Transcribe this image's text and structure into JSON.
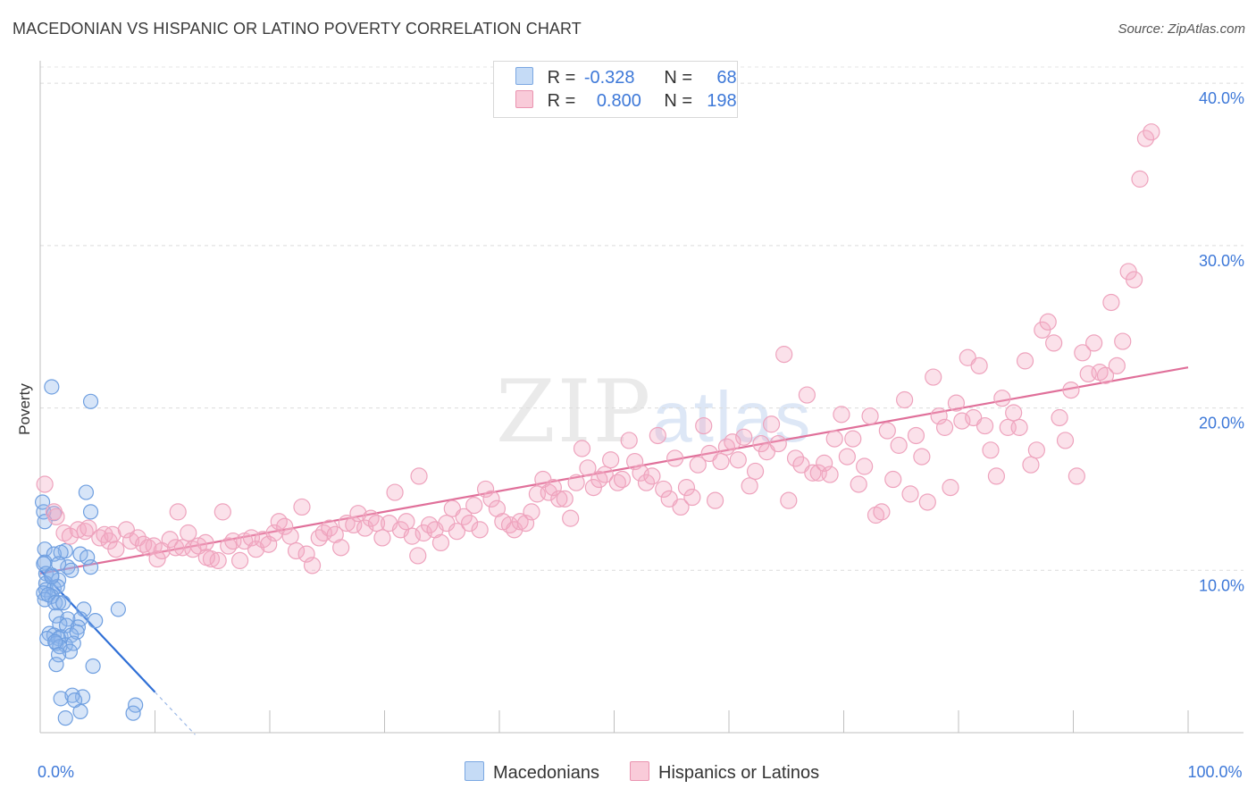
{
  "title": "MACEDONIAN VS HISPANIC OR LATINO POVERTY CORRELATION CHART",
  "source": "Source: ZipAtlas.com",
  "watermark": {
    "zip": "ZIP",
    "atlas": "atlas"
  },
  "legend": {
    "r_label": "R =",
    "n_label": "N =",
    "macedonian": {
      "r": "-0.328",
      "n": "68",
      "color": "#a8c8f0"
    },
    "hispanic": {
      "r": "0.800",
      "n": "198",
      "color": "#f4b8cb"
    }
  },
  "bottom_legend": {
    "macedonians": "Macedonians",
    "hispanics": "Hispanics or Latinos"
  },
  "chart_data": {
    "type": "scatter",
    "title": "MACEDONIAN VS HISPANIC OR LATINO POVERTY CORRELATION CHART",
    "xlabel": "",
    "ylabel": "Poverty",
    "xlim": [
      0,
      100
    ],
    "ylim": [
      0,
      41
    ],
    "x_tick_labels": [
      {
        "value": 0,
        "label": "0.0%"
      },
      {
        "value": 100,
        "label": "100.0%"
      }
    ],
    "y_tick_labels": [
      {
        "value": 10,
        "label": "10.0%"
      },
      {
        "value": 20,
        "label": "20.0%"
      },
      {
        "value": 30,
        "label": "30.0%"
      },
      {
        "value": 40,
        "label": "40.0%"
      }
    ],
    "series": [
      {
        "name": "Macedonians",
        "color": "#6fa3e6",
        "trend": {
          "x0": 0,
          "y0": 10.0,
          "x1": 10,
          "y1": 2.5,
          "dash_to_x": 13.5
        },
        "points": [
          [
            1.0,
            21.3
          ],
          [
            4.4,
            20.4
          ],
          [
            4.0,
            14.8
          ],
          [
            4.4,
            13.6
          ],
          [
            0.3,
            13.6
          ],
          [
            1.2,
            13.5
          ],
          [
            0.4,
            13.0
          ],
          [
            0.4,
            11.3
          ],
          [
            2.2,
            11.2
          ],
          [
            3.5,
            11.0
          ],
          [
            4.1,
            10.8
          ],
          [
            1.2,
            11.0
          ],
          [
            1.8,
            11.1
          ],
          [
            0.4,
            10.5
          ],
          [
            2.4,
            10.2
          ],
          [
            0.3,
            10.4
          ],
          [
            1.6,
            10.4
          ],
          [
            2.7,
            10.0
          ],
          [
            4.4,
            10.2
          ],
          [
            0.5,
            9.8
          ],
          [
            1.0,
            9.7
          ],
          [
            0.5,
            9.2
          ],
          [
            1.6,
            9.4
          ],
          [
            0.5,
            8.8
          ],
          [
            1.2,
            8.9
          ],
          [
            1.5,
            9.0
          ],
          [
            0.3,
            8.6
          ],
          [
            1.0,
            8.4
          ],
          [
            0.4,
            8.2
          ],
          [
            0.7,
            8.5
          ],
          [
            1.3,
            8.0
          ],
          [
            1.6,
            8.0
          ],
          [
            2.0,
            8.0
          ],
          [
            3.8,
            7.6
          ],
          [
            6.8,
            7.6
          ],
          [
            1.4,
            7.2
          ],
          [
            2.4,
            7.0
          ],
          [
            3.5,
            7.0
          ],
          [
            4.8,
            6.9
          ],
          [
            1.7,
            6.7
          ],
          [
            2.3,
            6.6
          ],
          [
            3.3,
            6.5
          ],
          [
            0.8,
            6.1
          ],
          [
            1.2,
            6.0
          ],
          [
            1.8,
            5.9
          ],
          [
            0.6,
            5.8
          ],
          [
            1.6,
            5.8
          ],
          [
            2.7,
            6.0
          ],
          [
            3.2,
            6.2
          ],
          [
            1.4,
            5.5
          ],
          [
            2.2,
            5.4
          ],
          [
            1.7,
            5.3
          ],
          [
            2.9,
            5.5
          ],
          [
            1.3,
            5.6
          ],
          [
            2.6,
            5.0
          ],
          [
            1.6,
            4.8
          ],
          [
            1.4,
            4.2
          ],
          [
            4.6,
            4.1
          ],
          [
            1.8,
            2.1
          ],
          [
            3.7,
            2.2
          ],
          [
            2.8,
            2.3
          ],
          [
            8.3,
            1.7
          ],
          [
            3.5,
            1.3
          ],
          [
            8.1,
            1.2
          ],
          [
            2.2,
            0.9
          ],
          [
            3.0,
            2.0
          ],
          [
            0.2,
            14.2
          ],
          [
            1.0,
            9.6
          ]
        ]
      },
      {
        "name": "Hispanics or Latinos",
        "color": "#f09bb5",
        "trend": {
          "x0": 0,
          "y0": 9.8,
          "x1": 100,
          "y1": 22.5
        },
        "points": [
          [
            0.4,
            15.3
          ],
          [
            1.2,
            13.6
          ],
          [
            1.4,
            13.3
          ],
          [
            2.1,
            12.3
          ],
          [
            2.6,
            12.1
          ],
          [
            3.3,
            12.5
          ],
          [
            3.9,
            12.4
          ],
          [
            4.2,
            12.6
          ],
          [
            5.2,
            12.0
          ],
          [
            5.6,
            12.2
          ],
          [
            6.0,
            11.8
          ],
          [
            6.3,
            12.2
          ],
          [
            6.6,
            11.3
          ],
          [
            7.5,
            12.5
          ],
          [
            7.9,
            11.8
          ],
          [
            8.5,
            12.0
          ],
          [
            9.0,
            11.6
          ],
          [
            9.4,
            11.4
          ],
          [
            9.9,
            11.5
          ],
          [
            10.2,
            10.7
          ],
          [
            10.6,
            11.2
          ],
          [
            11.3,
            11.9
          ],
          [
            11.8,
            11.4
          ],
          [
            12.4,
            11.4
          ],
          [
            12.9,
            12.3
          ],
          [
            13.3,
            11.3
          ],
          [
            13.8,
            11.5
          ],
          [
            14.4,
            11.7
          ],
          [
            14.9,
            10.7
          ],
          [
            15.5,
            10.6
          ],
          [
            15.9,
            13.6
          ],
          [
            16.4,
            11.5
          ],
          [
            16.8,
            11.8
          ],
          [
            17.4,
            10.6
          ],
          [
            17.8,
            11.8
          ],
          [
            18.4,
            12.0
          ],
          [
            18.8,
            11.3
          ],
          [
            19.4,
            11.9
          ],
          [
            19.9,
            11.6
          ],
          [
            20.4,
            12.3
          ],
          [
            20.8,
            13.0
          ],
          [
            21.3,
            12.7
          ],
          [
            21.8,
            12.1
          ],
          [
            22.3,
            11.2
          ],
          [
            22.8,
            13.9
          ],
          [
            23.2,
            11.0
          ],
          [
            23.7,
            10.3
          ],
          [
            24.3,
            12.0
          ],
          [
            24.7,
            12.3
          ],
          [
            25.2,
            12.6
          ],
          [
            25.7,
            12.2
          ],
          [
            26.2,
            11.4
          ],
          [
            26.7,
            12.9
          ],
          [
            27.3,
            12.8
          ],
          [
            27.7,
            13.5
          ],
          [
            28.3,
            12.6
          ],
          [
            28.8,
            13.2
          ],
          [
            29.3,
            12.9
          ],
          [
            29.8,
            12.0
          ],
          [
            30.4,
            12.9
          ],
          [
            30.9,
            14.8
          ],
          [
            31.4,
            12.5
          ],
          [
            31.9,
            13.0
          ],
          [
            32.4,
            12.1
          ],
          [
            32.9,
            10.9
          ],
          [
            33.4,
            12.3
          ],
          [
            33.9,
            12.8
          ],
          [
            34.4,
            12.5
          ],
          [
            34.9,
            11.7
          ],
          [
            35.4,
            12.9
          ],
          [
            35.9,
            13.8
          ],
          [
            36.3,
            12.4
          ],
          [
            36.9,
            13.3
          ],
          [
            37.4,
            12.9
          ],
          [
            37.8,
            14.0
          ],
          [
            38.3,
            12.5
          ],
          [
            38.8,
            15.0
          ],
          [
            39.3,
            14.4
          ],
          [
            39.8,
            13.8
          ],
          [
            40.3,
            13.0
          ],
          [
            40.9,
            12.8
          ],
          [
            41.3,
            12.5
          ],
          [
            41.8,
            13.0
          ],
          [
            42.3,
            12.9
          ],
          [
            42.8,
            13.6
          ],
          [
            43.3,
            14.7
          ],
          [
            43.8,
            15.6
          ],
          [
            44.3,
            14.8
          ],
          [
            44.7,
            15.1
          ],
          [
            45.2,
            14.4
          ],
          [
            45.7,
            14.4
          ],
          [
            46.2,
            13.2
          ],
          [
            46.7,
            15.4
          ],
          [
            47.2,
            17.5
          ],
          [
            47.7,
            16.3
          ],
          [
            48.2,
            15.1
          ],
          [
            48.7,
            15.6
          ],
          [
            49.2,
            15.9
          ],
          [
            49.7,
            16.8
          ],
          [
            50.3,
            15.4
          ],
          [
            50.7,
            15.6
          ],
          [
            51.3,
            18.0
          ],
          [
            51.8,
            16.7
          ],
          [
            52.3,
            16.0
          ],
          [
            52.8,
            15.4
          ],
          [
            53.3,
            15.8
          ],
          [
            53.8,
            18.3
          ],
          [
            54.3,
            15.0
          ],
          [
            54.8,
            14.4
          ],
          [
            55.3,
            16.9
          ],
          [
            55.8,
            13.9
          ],
          [
            56.3,
            15.1
          ],
          [
            56.8,
            14.5
          ],
          [
            57.3,
            16.5
          ],
          [
            57.8,
            18.9
          ],
          [
            58.3,
            17.2
          ],
          [
            58.8,
            14.3
          ],
          [
            59.3,
            16.7
          ],
          [
            59.8,
            17.6
          ],
          [
            60.3,
            17.9
          ],
          [
            60.8,
            16.8
          ],
          [
            61.3,
            18.2
          ],
          [
            61.8,
            15.2
          ],
          [
            62.3,
            16.1
          ],
          [
            62.8,
            17.8
          ],
          [
            63.3,
            17.3
          ],
          [
            63.7,
            19.0
          ],
          [
            64.3,
            17.8
          ],
          [
            64.8,
            23.3
          ],
          [
            65.2,
            14.3
          ],
          [
            65.8,
            16.9
          ],
          [
            66.3,
            16.5
          ],
          [
            66.8,
            20.8
          ],
          [
            67.3,
            16.0
          ],
          [
            67.8,
            16.0
          ],
          [
            68.3,
            16.6
          ],
          [
            68.8,
            15.9
          ],
          [
            69.2,
            18.1
          ],
          [
            69.8,
            19.6
          ],
          [
            70.3,
            17.0
          ],
          [
            70.8,
            18.1
          ],
          [
            71.3,
            15.3
          ],
          [
            71.8,
            16.4
          ],
          [
            72.3,
            19.5
          ],
          [
            72.8,
            13.4
          ],
          [
            73.3,
            13.6
          ],
          [
            73.8,
            18.6
          ],
          [
            74.3,
            15.6
          ],
          [
            74.8,
            17.7
          ],
          [
            75.3,
            20.5
          ],
          [
            75.8,
            14.7
          ],
          [
            76.3,
            18.3
          ],
          [
            76.8,
            17.0
          ],
          [
            77.3,
            14.2
          ],
          [
            77.8,
            21.9
          ],
          [
            78.3,
            19.5
          ],
          [
            78.8,
            18.8
          ],
          [
            79.3,
            15.1
          ],
          [
            79.8,
            20.3
          ],
          [
            80.3,
            19.2
          ],
          [
            80.8,
            23.1
          ],
          [
            81.3,
            19.4
          ],
          [
            81.8,
            22.6
          ],
          [
            82.3,
            18.9
          ],
          [
            82.8,
            17.4
          ],
          [
            83.3,
            15.8
          ],
          [
            83.8,
            20.6
          ],
          [
            84.3,
            18.8
          ],
          [
            84.8,
            19.7
          ],
          [
            85.3,
            18.8
          ],
          [
            85.8,
            22.9
          ],
          [
            86.3,
            16.5
          ],
          [
            86.8,
            17.4
          ],
          [
            87.3,
            24.8
          ],
          [
            87.8,
            25.3
          ],
          [
            88.3,
            24.0
          ],
          [
            88.8,
            19.4
          ],
          [
            89.3,
            18.0
          ],
          [
            89.8,
            21.1
          ],
          [
            90.3,
            15.8
          ],
          [
            90.8,
            23.4
          ],
          [
            91.3,
            22.1
          ],
          [
            91.8,
            24.0
          ],
          [
            92.3,
            22.2
          ],
          [
            92.8,
            22.0
          ],
          [
            93.3,
            26.5
          ],
          [
            93.8,
            22.6
          ],
          [
            94.3,
            24.1
          ],
          [
            94.8,
            28.4
          ],
          [
            95.3,
            27.9
          ],
          [
            95.8,
            34.1
          ],
          [
            96.3,
            36.6
          ],
          [
            96.8,
            37.0
          ],
          [
            12.0,
            13.6
          ],
          [
            14.5,
            10.8
          ],
          [
            33.0,
            15.8
          ]
        ]
      }
    ]
  }
}
